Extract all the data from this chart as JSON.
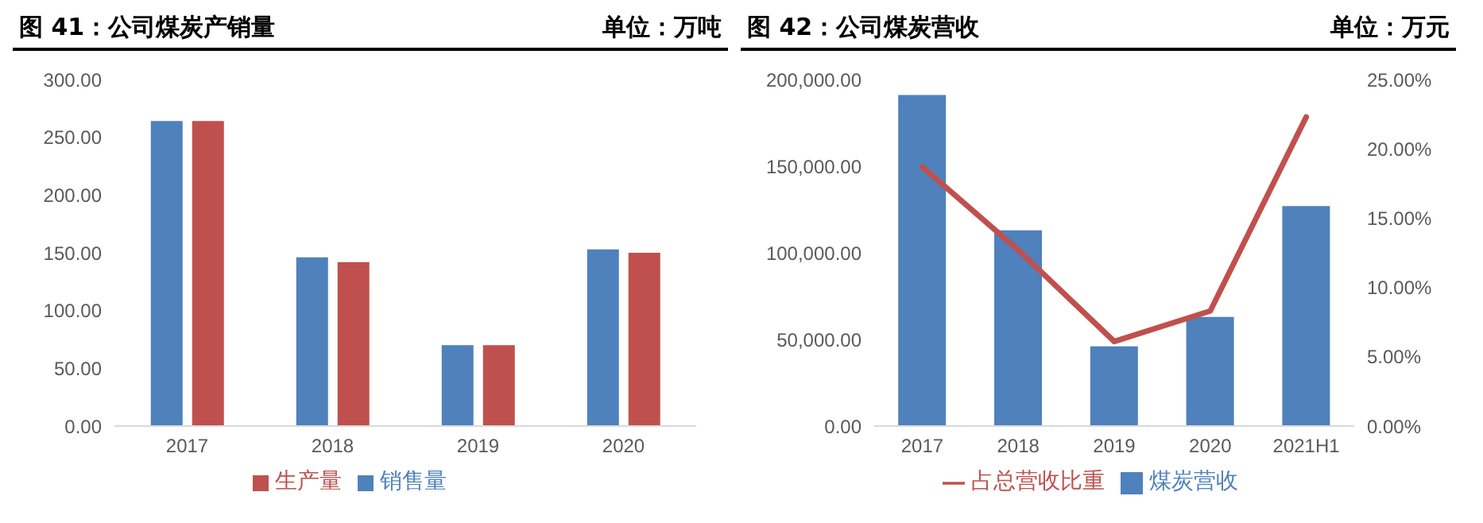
{
  "chart_data": [
    {
      "type": "bar",
      "title": "图 41：公司煤炭产销量",
      "subtitle": "单位：万吨",
      "categories": [
        "2017",
        "2018",
        "2019",
        "2020"
      ],
      "series": [
        {
          "name": "销售量",
          "color": "#4f81bd",
          "values": [
            264,
            146,
            70,
            153
          ]
        },
        {
          "name": "生产量",
          "color": "#c0504d",
          "values": [
            264,
            142,
            70,
            150
          ]
        }
      ],
      "ylim": [
        0,
        300
      ],
      "yticks": [
        {
          "value": 0,
          "label": "0.00"
        },
        {
          "value": 50,
          "label": "50.00"
        },
        {
          "value": 100,
          "label": "100.00"
        },
        {
          "value": 150,
          "label": "150.00"
        },
        {
          "value": 200,
          "label": "200.00"
        },
        {
          "value": 250,
          "label": "250.00"
        },
        {
          "value": 300,
          "label": "300.00"
        }
      ],
      "grid": false,
      "legend": "bottom"
    },
    {
      "type": "bar",
      "title": "图 42：公司煤炭营收",
      "subtitle": "单位：万元",
      "categories": [
        "2017",
        "2018",
        "2019",
        "2020",
        "2021H1"
      ],
      "series": [
        {
          "name": "煤炭营收",
          "color": "#4f81bd",
          "values": [
            191000,
            113000,
            46000,
            63000,
            127000
          ]
        },
        {
          "name": "占总营收比重",
          "type": "line",
          "axis": "y2",
          "color": "#c0504d",
          "values": [
            18.7,
            12.7,
            6.1,
            8.3,
            22.3
          ]
        }
      ],
      "ylim": [
        0,
        200000
      ],
      "yticks": [
        {
          "value": 0,
          "label": "0.00"
        },
        {
          "value": 50000,
          "label": "50,000.00"
        },
        {
          "value": 100000,
          "label": "100,000.00"
        },
        {
          "value": 150000,
          "label": "150,000.00"
        },
        {
          "value": 200000,
          "label": "200,000.00"
        }
      ],
      "y2lim": [
        0,
        25
      ],
      "y2ticks": [
        {
          "value": 0,
          "label": "0.00%"
        },
        {
          "value": 5,
          "label": "5.00%"
        },
        {
          "value": 10,
          "label": "10.00%"
        },
        {
          "value": 15,
          "label": "15.00%"
        },
        {
          "value": 20,
          "label": "20.00%"
        },
        {
          "value": 25,
          "label": "25.00%"
        }
      ],
      "grid": false,
      "legend": "bottom",
      "marker": "none"
    }
  ]
}
